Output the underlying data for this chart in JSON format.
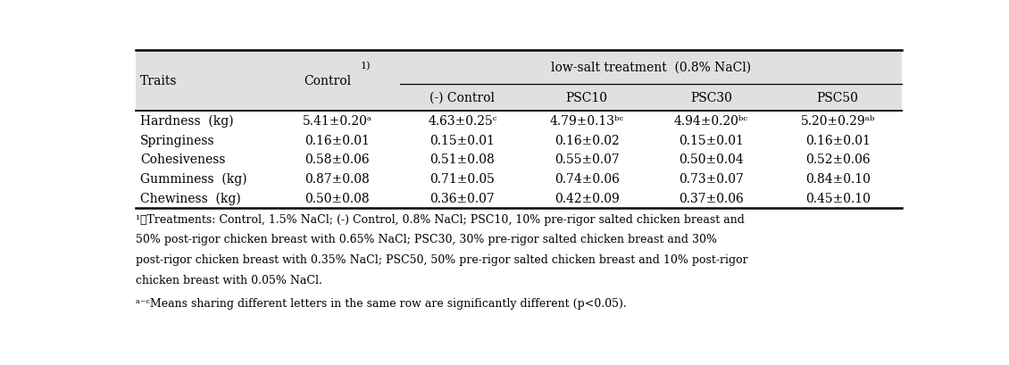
{
  "col_span_label": "low-salt treatment  (0.8% NaCl)",
  "sub_headers": [
    "(-) Control",
    "PSC10",
    "PSC30",
    "PSC50"
  ],
  "rows": [
    [
      "Hardness  (kg)",
      "5.41±0.20ᵃ",
      "4.63±0.25ᶜ",
      "4.79±0.13ᵇᶜ",
      "4.94±0.20ᵇᶜ",
      "5.20±0.29ᵃᵇ"
    ],
    [
      "Springiness",
      "0.16±0.01",
      "0.15±0.01",
      "0.16±0.02",
      "0.15±0.01",
      "0.16±0.01"
    ],
    [
      "Cohesiveness",
      "0.58±0.06",
      "0.51±0.08",
      "0.55±0.07",
      "0.50±0.04",
      "0.52±0.06"
    ],
    [
      "Gumminess  (kg)",
      "0.87±0.08",
      "0.71±0.05",
      "0.74±0.06",
      "0.73±0.07",
      "0.84±0.10"
    ],
    [
      "Chewiness  (kg)",
      "0.50±0.08",
      "0.36±0.07",
      "0.42±0.09",
      "0.37±0.06",
      "0.45±0.10"
    ]
  ],
  "footnote1_lines": [
    "¹⧮Treatments: Control, 1.5% NaCl; (-) Control, 0.8% NaCl; PSC10, 10% pre-rigor salted chicken breast and",
    "50% post-rigor chicken breast with 0.65% NaCl; PSC30, 30% pre-rigor salted chicken breast and 30%",
    "post-rigor chicken breast with 0.35% NaCl; PSC50, 50% pre-rigor salted chicken breast and 10% post-rigor",
    "chicken breast with 0.05% NaCl."
  ],
  "footnote2": "ᵃ⁻ᶜMeans sharing different letters in the same row are significantly different (p<0.05).",
  "header_bg": "#e0e0e0",
  "text_color": "#000000",
  "font_size": 10,
  "small_font_size": 8,
  "footnote_font_size": 9
}
